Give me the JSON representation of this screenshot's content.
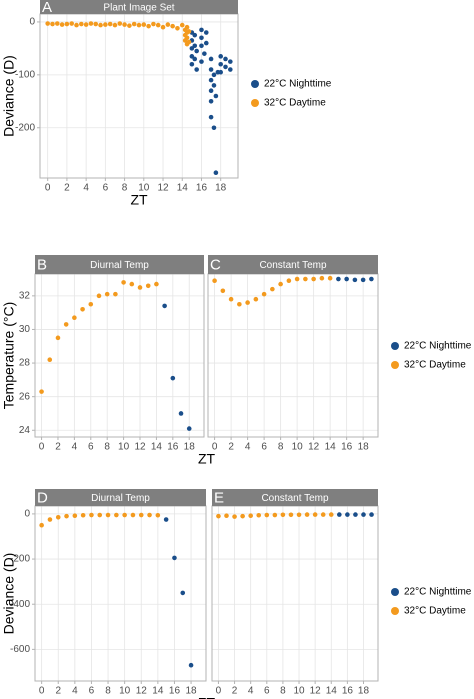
{
  "chart_data": [
    {
      "type": "scatter",
      "ylabel": "Deviance (D)",
      "xlabel": "ZT",
      "xlim": [
        -0.8,
        19.8
      ],
      "ylim": [
        -295,
        15
      ],
      "xticks": [
        0,
        2,
        4,
        6,
        8,
        10,
        12,
        14,
        16,
        18
      ],
      "yticks": [
        0,
        -100,
        -200
      ],
      "grid": true,
      "legend": [
        {
          "name": "22°C Nighttime",
          "color": "#1a4e8a"
        },
        {
          "name": "32°C Daytime",
          "color": "#f39a1e"
        }
      ],
      "panels": [
        {
          "tag": "A",
          "title": "Plant Image Set",
          "series": [
            {
              "x": [
                15,
                15,
                15,
                15,
                15,
                15.3,
                15.3,
                15.3,
                15.5,
                15.5,
                16,
                16,
                16,
                16,
                16.3,
                16.5,
                16.5,
                17,
                17,
                17,
                17,
                17,
                17,
                17.3,
                17.3,
                17.3,
                17.5,
                17.5,
                17.7,
                18,
                18,
                18,
                18.5,
                18.5,
                19,
                19
              ],
              "y": [
                -20,
                -35,
                -50,
                -65,
                -80,
                -25,
                -45,
                -70,
                -90,
                -55,
                -15,
                -30,
                -45,
                -75,
                -60,
                -20,
                -40,
                -70,
                -90,
                -110,
                -130,
                -150,
                -180,
                -100,
                -120,
                -200,
                -140,
                -285,
                -95,
                -65,
                -80,
                -95,
                -70,
                -85,
                -75,
                -90
              ]
            },
            {
              "x": [
                0,
                0.5,
                1,
                1.5,
                2,
                2.5,
                3,
                3.5,
                4,
                4.5,
                5,
                5.5,
                6,
                6.5,
                7,
                7.5,
                8,
                8.5,
                9,
                9.5,
                10,
                10.5,
                11,
                11.5,
                12,
                12.5,
                13,
                13.5,
                14,
                14.3,
                14.3,
                14.3,
                14.5,
                14.5,
                14.5,
                14.5,
                14.7,
                14.7
              ],
              "y": [
                -3,
                -4,
                -3,
                -5,
                -4,
                -3,
                -6,
                -4,
                -5,
                -3,
                -4,
                -6,
                -5,
                -4,
                -6,
                -3,
                -5,
                -7,
                -4,
                -6,
                -5,
                -8,
                -4,
                -6,
                -10,
                -5,
                -8,
                -12,
                -6,
                -15,
                -25,
                -35,
                -10,
                -20,
                -30,
                -42,
                -18,
                -38
              ]
            }
          ]
        }
      ]
    },
    {
      "type": "scatter",
      "ylabel": "Temperature (°C)",
      "xlabel": "ZT",
      "xlim": [
        -0.8,
        19.8
      ],
      "ylim": [
        23.6,
        33.3
      ],
      "xticks": [
        0,
        2,
        4,
        6,
        8,
        10,
        12,
        14,
        16,
        18
      ],
      "yticks": [
        24,
        26,
        28,
        30,
        32
      ],
      "grid": true,
      "legend": [
        {
          "name": "22°C Nighttime",
          "color": "#1a4e8a"
        },
        {
          "name": "32°C Daytime",
          "color": "#f39a1e"
        }
      ],
      "panels": [
        {
          "tag": "B",
          "title": "Diurnal Temp",
          "series": [
            {
              "x": [
                15,
                16,
                17,
                18
              ],
              "y": [
                31.4,
                27.1,
                25.0,
                24.1
              ]
            },
            {
              "x": [
                0,
                1,
                2,
                3,
                4,
                5,
                6,
                7,
                8,
                9,
                10,
                11,
                12,
                13,
                14
              ],
              "y": [
                26.3,
                28.2,
                29.5,
                30.3,
                30.7,
                31.2,
                31.5,
                32.0,
                32.1,
                32.1,
                32.8,
                32.7,
                32.5,
                32.6,
                32.7
              ]
            }
          ]
        },
        {
          "tag": "C",
          "title": "Constant Temp",
          "series": [
            {
              "x": [
                15,
                16,
                17,
                18,
                19
              ],
              "y": [
                33.0,
                33.0,
                32.95,
                32.95,
                33.0
              ]
            },
            {
              "x": [
                0,
                1,
                2,
                3,
                4,
                5,
                6,
                7,
                8,
                9,
                10,
                11,
                12,
                13,
                14
              ],
              "y": [
                32.9,
                32.3,
                31.8,
                31.5,
                31.6,
                31.8,
                32.1,
                32.4,
                32.7,
                32.9,
                33.0,
                33.0,
                33.0,
                33.05,
                33.05
              ]
            }
          ]
        }
      ]
    },
    {
      "type": "scatter",
      "ylabel": "Deviance (D)",
      "xlabel": "ZT",
      "xlim": [
        -0.8,
        19.8
      ],
      "ylim": [
        -740,
        35
      ],
      "xticks": [
        0,
        2,
        4,
        6,
        8,
        10,
        12,
        14,
        16,
        18
      ],
      "yticks": [
        0,
        -200,
        -400,
        -600
      ],
      "grid": true,
      "legend": [
        {
          "name": "22°C Nighttime",
          "color": "#1a4e8a"
        },
        {
          "name": "32°C Daytime",
          "color": "#f39a1e"
        }
      ],
      "panels": [
        {
          "tag": "D",
          "title": "Diurnal Temp",
          "series": [
            {
              "x": [
                15,
                16,
                17,
                18
              ],
              "y": [
                -25,
                -195,
                -350,
                -670
              ]
            },
            {
              "x": [
                0,
                1,
                2,
                3,
                4,
                5,
                6,
                7,
                8,
                9,
                10,
                11,
                12,
                13,
                14
              ],
              "y": [
                -50,
                -25,
                -15,
                -10,
                -8,
                -6,
                -5,
                -5,
                -5,
                -5,
                -5,
                -5,
                -5,
                -5,
                -6
              ]
            }
          ]
        },
        {
          "tag": "E",
          "title": "Constant Temp",
          "series": [
            {
              "x": [
                15,
                16,
                17,
                18,
                19
              ],
              "y": [
                -3,
                -3,
                -3,
                -3,
                -3
              ]
            },
            {
              "x": [
                0,
                1,
                2,
                3,
                4,
                5,
                6,
                7,
                8,
                9,
                10,
                11,
                12,
                13,
                14
              ],
              "y": [
                -10,
                -8,
                -12,
                -10,
                -8,
                -6,
                -5,
                -5,
                -4,
                -4,
                -4,
                -3,
                -3,
                -3,
                -3
              ]
            }
          ]
        }
      ]
    }
  ]
}
